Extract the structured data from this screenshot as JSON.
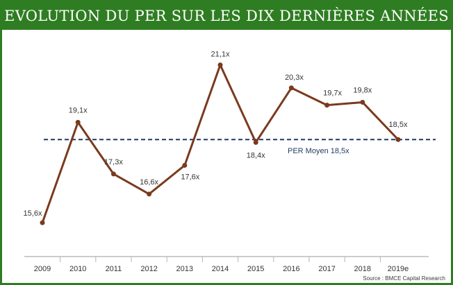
{
  "header": {
    "title": "EVOLUTION DU PER SUR LES DIX DERNIÈRES ANNÉES"
  },
  "footer": {
    "source": "Source : BMCE Capital Research"
  },
  "colors": {
    "frame": "#2e7d22",
    "line": "#7a3a1e",
    "average": "#1f3a5f"
  },
  "chart_data": {
    "type": "line",
    "title": "EVOLUTION DU PER SUR LES DIX DERNIÈRES ANNÉES",
    "xlabel": "",
    "ylabel": "",
    "categories": [
      "2009",
      "2010",
      "2011",
      "2012",
      "2013",
      "2014",
      "2015",
      "2016",
      "2017",
      "2018",
      "2019e"
    ],
    "series": [
      {
        "name": "PER",
        "values": [
          15.6,
          19.1,
          17.3,
          16.6,
          17.6,
          21.1,
          18.4,
          20.3,
          19.7,
          19.8,
          18.5
        ],
        "labels": [
          "15,6x",
          "19,1x",
          "17,3x",
          "16,6x",
          "17,6x",
          "21,1x",
          "18,4x",
          "20,3x",
          "19,7x",
          "19,8x",
          "18,5x"
        ]
      }
    ],
    "average": {
      "value": 18.5,
      "label": "PER Moyen 18,5x"
    },
    "ylim": [
      15.0,
      21.6
    ],
    "grid": false
  }
}
